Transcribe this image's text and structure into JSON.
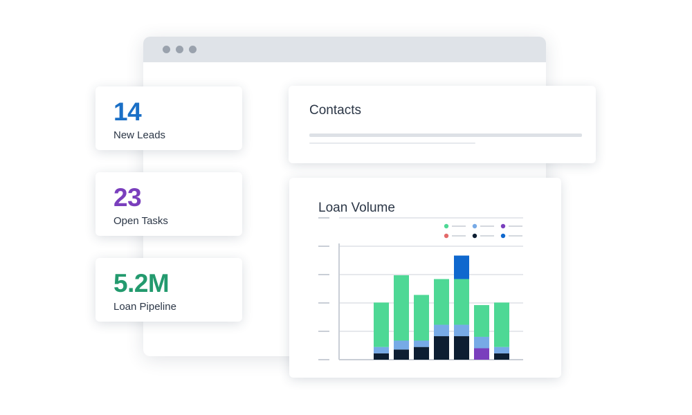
{
  "stats": [
    {
      "value": "14",
      "label": "New Leads",
      "color": "#1a6fc6"
    },
    {
      "value": "23",
      "label": "Open Tasks",
      "color": "#7a3fbd"
    },
    {
      "value": "5.2M",
      "label": "Loan Pipeline",
      "color": "#239a6e"
    }
  ],
  "contacts": {
    "title": "Contacts"
  },
  "loan_volume": {
    "title": "Loan Volume"
  },
  "colors": {
    "green": "#4ed895",
    "light_blue": "#77aae6",
    "navy": "#0d1e32",
    "blue": "#0f68ce",
    "purple": "#7a3fbd",
    "red": "#e36a6a",
    "grid": "#dde1e6",
    "axis": "#c9ced6"
  },
  "chart_data": {
    "type": "bar",
    "stacked": true,
    "categories": [
      "",
      "",
      "",
      "",
      "",
      "",
      ""
    ],
    "series": [
      {
        "color": "#0d1e32",
        "values": [
          10,
          16,
          20,
          37,
          37,
          0,
          10
        ]
      },
      {
        "color": "#7a3fbd",
        "values": [
          0,
          0,
          0,
          0,
          0,
          18,
          0
        ]
      },
      {
        "color": "#77aae6",
        "values": [
          10,
          14,
          10,
          18,
          18,
          18,
          10
        ]
      },
      {
        "color": "#4ed895",
        "values": [
          70,
          103,
          72,
          72,
          72,
          50,
          70
        ]
      },
      {
        "color": "#0f68ce",
        "values": [
          0,
          0,
          0,
          0,
          37,
          0,
          0
        ]
      }
    ],
    "legend_colors": [
      "#4ed895",
      "#77aae6",
      "#7a3fbd",
      "#e36a6a",
      "#0d1e32",
      "#0f68ce"
    ],
    "legend_placement": "top-right",
    "ylim": [
      0,
      170
    ],
    "grid": true
  }
}
